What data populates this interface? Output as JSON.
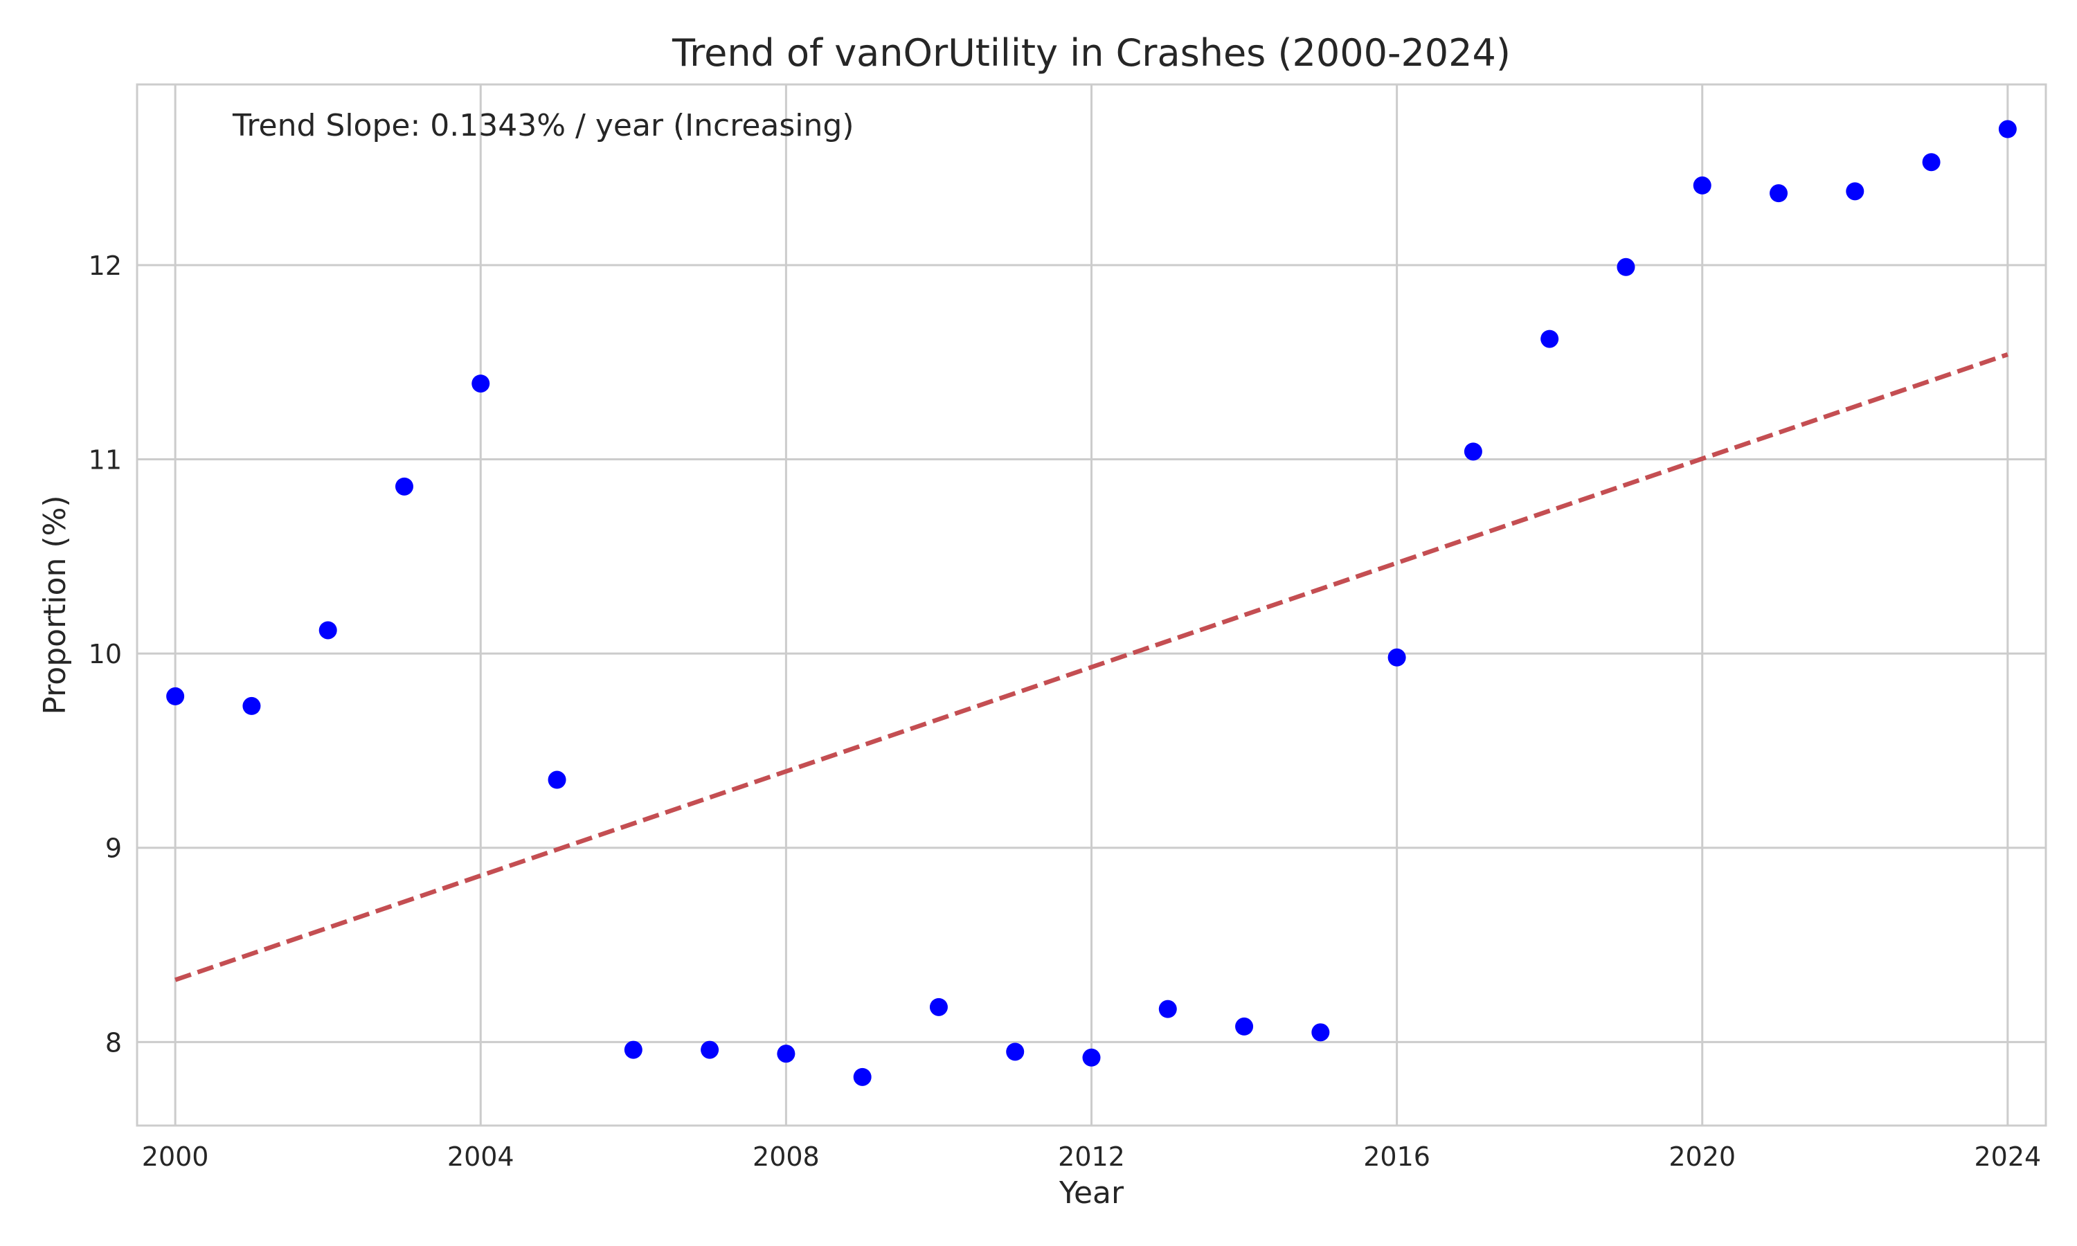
{
  "chart_data": {
    "type": "scatter",
    "title": "Trend of vanOrUtility in Crashes (2000-2024)",
    "xlabel": "Year",
    "ylabel": "Proportion (%)",
    "xlim": [
      1999.5,
      2024.5
    ],
    "ylim": [
      7.57,
      12.93
    ],
    "x_ticks": [
      2000,
      2004,
      2008,
      2012,
      2016,
      2020,
      2024
    ],
    "x_tick_labels": [
      "2000",
      "2004",
      "2008",
      "2012",
      "2016",
      "2020",
      "2024"
    ],
    "y_ticks": [
      8,
      9,
      10,
      11,
      12
    ],
    "y_tick_labels": [
      "8",
      "9",
      "10",
      "11",
      "12"
    ],
    "grid": true,
    "series": [
      {
        "kind": "points",
        "color": "#0000ff",
        "x": [
          2000,
          2001,
          2002,
          2003,
          2004,
          2005,
          2006,
          2007,
          2008,
          2009,
          2010,
          2011,
          2012,
          2013,
          2014,
          2015,
          2016,
          2017,
          2018,
          2019,
          2020,
          2021,
          2022,
          2023,
          2024
        ],
        "y": [
          9.78,
          9.73,
          10.12,
          10.86,
          11.39,
          9.35,
          7.96,
          7.96,
          7.94,
          7.82,
          8.18,
          7.95,
          7.92,
          8.17,
          8.08,
          8.05,
          9.98,
          11.04,
          11.62,
          11.99,
          12.41,
          12.37,
          12.38,
          12.53,
          12.7
        ]
      },
      {
        "kind": "trend-line",
        "color": "#c44e52",
        "dashed": true,
        "x": [
          2000,
          2024
        ],
        "y": [
          8.32,
          11.54
        ]
      }
    ],
    "annotation": "Trend Slope: 0.1343% / year (Increasing)"
  }
}
